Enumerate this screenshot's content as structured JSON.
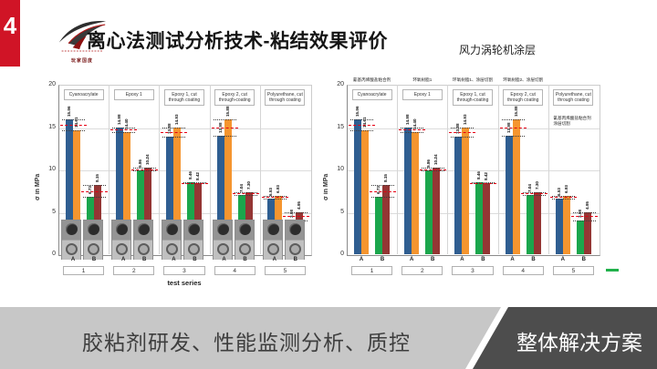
{
  "slide": {
    "page_number": "4",
    "logo_icon": "rog-eye-logo",
    "logo_caption": "玩家国度",
    "title": "离心法测试分析技术-粘结效果评价",
    "subtitle": "风力涡轮机涂层"
  },
  "banner": {
    "left_text": "胶粘剂研发、性能监测分析、质控",
    "right_text": "整体解决方案"
  },
  "colors": {
    "sidebar_red": "#d01426",
    "banner_light": "#c7c7c7",
    "banner_dark": "#4d4d4d",
    "bar_blue": "#2f5e91",
    "bar_orange": "#f5952f",
    "bar_green": "#1ba64c",
    "bar_darkred": "#943634",
    "mean_line_red": "#e60012",
    "bounds_line_black": "#3c3c3c",
    "legend_green": "#21b14b"
  },
  "chart_data": [
    {
      "type": "bar",
      "title": "",
      "ylabel": "σ in MPa",
      "xlabel": "test series",
      "ylim": [
        0,
        20
      ],
      "yticks": [
        0,
        5,
        10,
        15,
        20
      ],
      "grid": true,
      "sub_labels": [
        "A",
        "B"
      ],
      "series": [
        {
          "name": "A specimen 1",
          "color": "#2f5e91"
        },
        {
          "name": "A specimen 2",
          "color": "#f5952f"
        },
        {
          "name": "B specimen 1",
          "color": "#1ba64c"
        },
        {
          "name": "B specimen 2",
          "color": "#943634"
        }
      ],
      "annotations": {
        "mean_line": "red dashed mean",
        "bounds_line": "black dotted min/max"
      },
      "has_specimen_photos": true,
      "legend_dash": false,
      "groups": [
        {
          "id": "1",
          "label": "Cyanoacrylate",
          "A": [
            15.96,
            14.61
          ],
          "B": [
            6.73,
            8.15
          ]
        },
        {
          "id": "2",
          "label": "Epoxy 1",
          "A": [
            14.98,
            14.4
          ],
          "B": [
            9.86,
            10.24
          ]
        },
        {
          "id": "3",
          "label": "Epoxy 1, cut through coating",
          "A": [
            13.88,
            14.93
          ],
          "B": [
            8.46,
            8.42
          ]
        },
        {
          "id": "4",
          "label": "Epoxy 2, cut through-coating",
          "A": [
            13.98,
            15.88
          ],
          "B": [
            7.04,
            7.3
          ]
        },
        {
          "id": "5",
          "label": "Polyurethane, cut through coating",
          "A": [
            6.53,
            6.93
          ],
          "B": [
            3.98,
            4.95
          ]
        }
      ]
    },
    {
      "type": "bar",
      "title": "",
      "ylabel": "σ in MPa",
      "xlabel": "",
      "ylim": [
        0,
        20
      ],
      "yticks": [
        0,
        5,
        10,
        15,
        20
      ],
      "grid": true,
      "sub_labels": [
        "A",
        "B"
      ],
      "series": [
        {
          "name": "A specimen 1",
          "color": "#2f5e91"
        },
        {
          "name": "A specimen 2",
          "color": "#f5952f"
        },
        {
          "name": "B specimen 1",
          "color": "#1ba64c"
        },
        {
          "name": "B specimen 2",
          "color": "#943634"
        }
      ],
      "annotations": {
        "mean_line": "red dashed mean",
        "bounds_line": "black dotted min/max"
      },
      "has_specimen_photos": false,
      "legend_dash": true,
      "groups": [
        {
          "id": "1",
          "label": "Cyanoacrylate",
          "label_cn": "氰基丙烯酸盐粘合剂",
          "A": [
            15.96,
            14.61
          ],
          "B": [
            6.73,
            8.15
          ]
        },
        {
          "id": "2",
          "label": "Epoxy 1",
          "label_cn": "环氧树脂1",
          "A": [
            14.98,
            14.4
          ],
          "B": [
            9.86,
            10.24
          ]
        },
        {
          "id": "3",
          "label": "Epoxy 1, cut through-coating",
          "label_cn": "环氧树脂1、涂层切割",
          "A": [
            13.88,
            14.93
          ],
          "B": [
            8.46,
            8.42
          ]
        },
        {
          "id": "4",
          "label": "Epoxy 2, cut through coating",
          "label_cn": "环氧树脂2、涂层切割",
          "A": [
            13.98,
            15.88
          ],
          "B": [
            7.04,
            7.3
          ]
        },
        {
          "id": "5",
          "label": "Polyurethane, cut through coating",
          "label_cn": "",
          "note_cn": "氰基丙烯酸盐粘合剂 涂层切割",
          "A": [
            6.53,
            6.93
          ],
          "B": [
            3.98,
            4.95
          ]
        }
      ]
    }
  ]
}
